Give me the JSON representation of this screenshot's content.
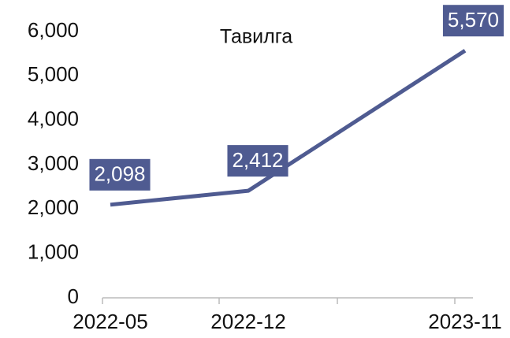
{
  "chart_data": {
    "type": "line",
    "title": "Тавилга",
    "categories": [
      "2022-05",
      "2022-12",
      "2023-11"
    ],
    "series": [
      {
        "name": "Тавилга",
        "color": "#4f5b91",
        "values": [
          2098,
          2412,
          5570
        ],
        "value_labels": [
          "2,098",
          "2,412",
          "5,570"
        ]
      }
    ],
    "ylim": [
      0,
      6000
    ],
    "yticks": [
      {
        "value": 0,
        "label": "0"
      },
      {
        "value": 1000,
        "label": "1,000"
      },
      {
        "value": 2000,
        "label": "2,000"
      },
      {
        "value": 3000,
        "label": "3,000"
      },
      {
        "value": 4000,
        "label": "4,000"
      },
      {
        "value": 5000,
        "label": "5,000"
      },
      {
        "value": 6000,
        "label": "6,000"
      }
    ],
    "grid": false
  }
}
